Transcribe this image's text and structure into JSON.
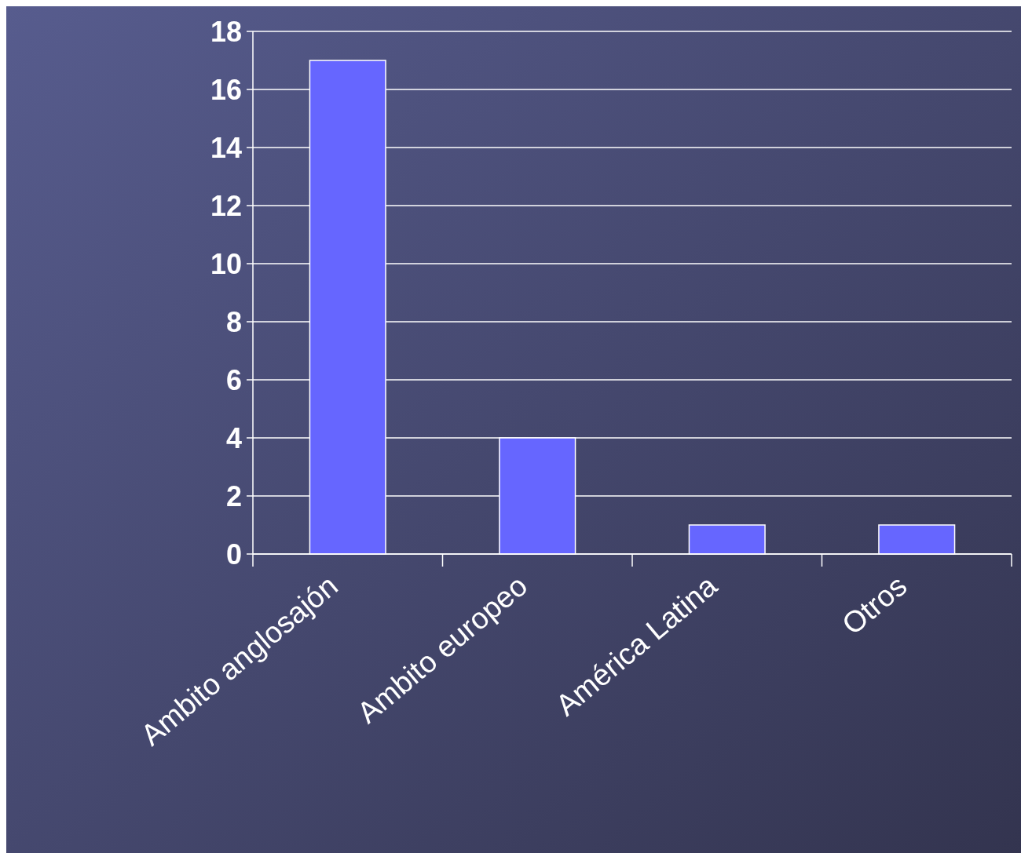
{
  "chart_data": {
    "type": "bar",
    "categories": [
      "Ambito anglosajón",
      "Ambito europeo",
      "América Latina",
      "Otros"
    ],
    "values": [
      17,
      4,
      1,
      1
    ],
    "color": "#6666ff",
    "ylim": [
      0,
      18
    ],
    "yticks": [
      0,
      2,
      4,
      6,
      8,
      10,
      12,
      14,
      16,
      18
    ],
    "grid": "y"
  }
}
